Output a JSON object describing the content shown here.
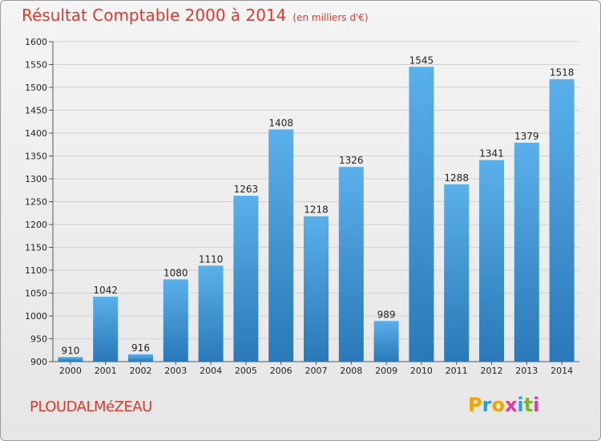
{
  "title": "Résultat Comptable 2000 à 2014",
  "unit": "(en milliers d'€)",
  "town": "PLOUDALMéZEAU",
  "logo": {
    "letters": [
      "P",
      "r",
      "o",
      "x",
      "i",
      "t",
      "i"
    ],
    "colors": [
      "#f2a400",
      "#2aa0d8",
      "#f2a400",
      "#e23a9a",
      "#2aa0d8",
      "#7bb52b",
      "#e23a9a"
    ]
  },
  "colors": {
    "accent": "#d93a2b",
    "bar_light": "#5ab0ea",
    "bar_dark": "#2a78b8"
  },
  "chart_data": {
    "type": "bar",
    "categories": [
      "2000",
      "2001",
      "2002",
      "2003",
      "2004",
      "2005",
      "2006",
      "2007",
      "2008",
      "2009",
      "2010",
      "2011",
      "2012",
      "2013",
      "2014"
    ],
    "values": [
      910,
      1042,
      916,
      1080,
      1110,
      1263,
      1408,
      1218,
      1326,
      989,
      1545,
      1288,
      1341,
      1379,
      1518
    ],
    "ylim": [
      900,
      1600
    ],
    "yticks": [
      900,
      950,
      1000,
      1050,
      1100,
      1150,
      1200,
      1250,
      1300,
      1350,
      1400,
      1450,
      1500,
      1550,
      1600
    ],
    "grid": true
  }
}
